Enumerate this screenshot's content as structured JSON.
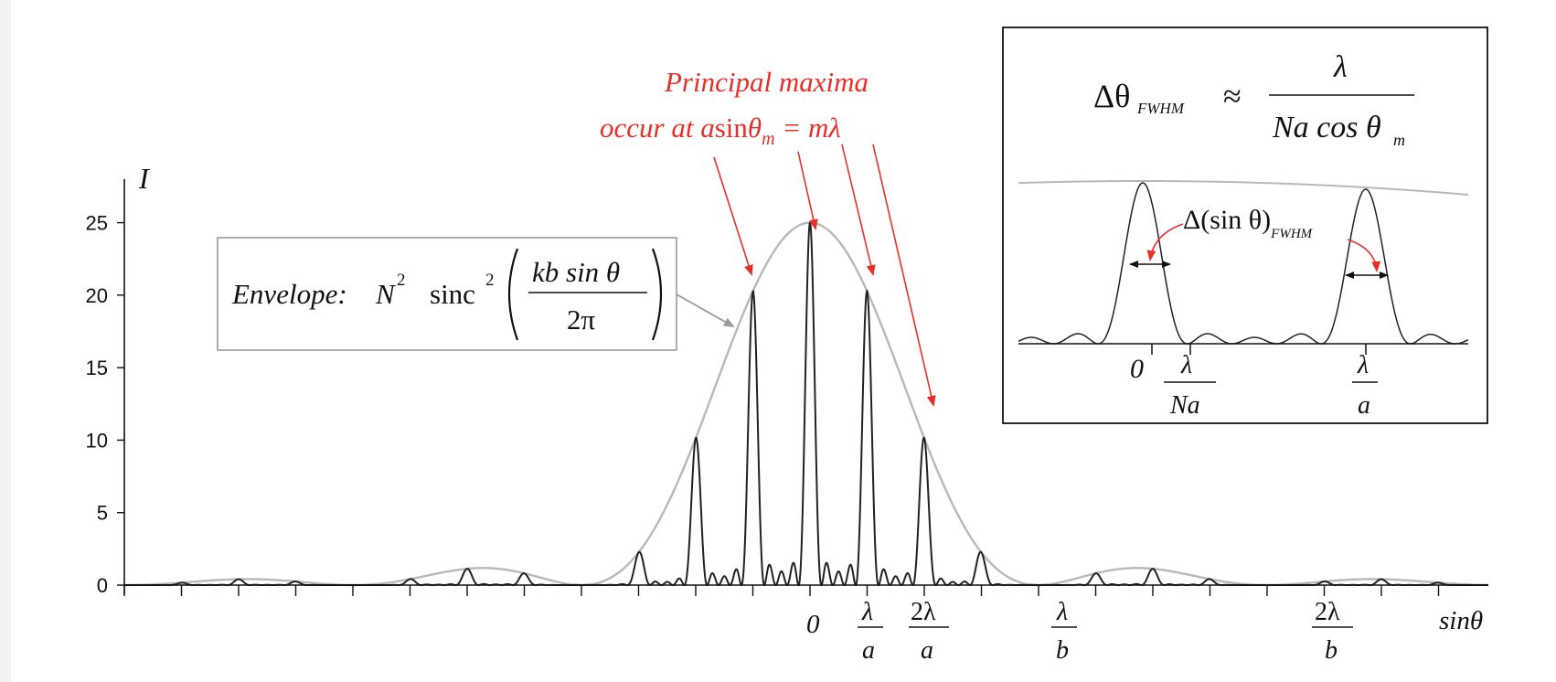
{
  "chart_data": {
    "type": "line",
    "title": "",
    "xlabel": "sinθ",
    "ylabel": "I",
    "ylim": [
      0,
      28
    ],
    "y_ticks": [
      "0",
      "5",
      "10",
      "15",
      "20",
      "25"
    ],
    "x_ticks": [
      {
        "num": "",
        "den": "",
        "single": "0"
      },
      {
        "num": "λ",
        "den": "a"
      },
      {
        "num": "2λ",
        "den": "a"
      },
      {
        "num": "λ",
        "den": "b"
      },
      {
        "num": "2λ",
        "den": "b"
      }
    ],
    "series": [
      {
        "name": "",
        "color": "#222222",
        "principal_maxima_order": [
          -3,
          -2,
          -1,
          0,
          1,
          2,
          3
        ],
        "peak_heights": [
          4.3,
          12.3,
          21.1,
          25,
          21.1,
          12.3,
          4.3
        ]
      },
      {
        "name": "",
        "color": "#b8b8b8"
      }
    ],
    "grid": false
  },
  "envelope_label": {
    "prefix": "Envelope:",
    "N": "N",
    "sq": "2",
    "sinc": "sinc",
    "sq2": "2",
    "num": "kb sin θ",
    "den": "2π"
  },
  "annotation": {
    "line1": "Principal maxima",
    "line2_prefix": "occur at a",
    "line2_sin": "sin",
    "line2_theta": "θ",
    "line2_sub": "m",
    "line2_suffix": " = mλ"
  },
  "inset": {
    "formula_lhs": "Δθ",
    "formula_sub": "FWHM",
    "approx": "≈",
    "formula_num": "λ",
    "formula_den": "Na cos θ",
    "formula_den_sub": "m",
    "width_label": "Δ(sin θ)",
    "width_sub": "FWHM",
    "tick_zero": "0",
    "tick1_num": "λ",
    "tick1_den": "Na",
    "tick2_num": "λ",
    "tick2_den": "a"
  },
  "colors": {
    "curve": "#222222",
    "envelope": "#b8b8b8",
    "annotation": "#e8302a",
    "axis": "#111111"
  }
}
